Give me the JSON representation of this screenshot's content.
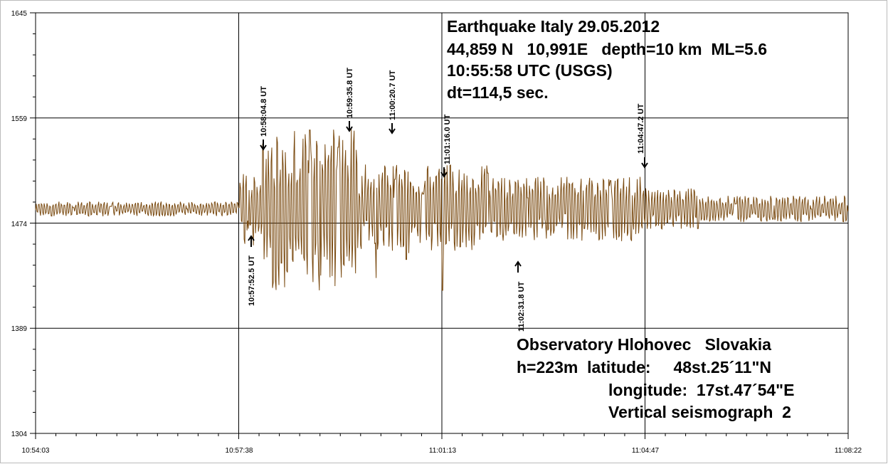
{
  "chart_data": {
    "type": "line",
    "y_ticks": [
      "1645",
      "1559",
      "1474",
      "1389",
      "1304"
    ],
    "x_ticks": [
      "10:54:03",
      "10:57:38",
      "11:01:13",
      "11:04:47",
      "11:08:22"
    ],
    "ylim": [
      1304,
      1645
    ],
    "xlim_seconds": [
      0,
      859
    ],
    "baseline": 1474,
    "grid": true,
    "series": [
      {
        "color": "#7a4a10",
        "x": [
          0,
          40,
          80,
          120,
          160,
          215,
          225,
          240,
          260,
          290,
          300,
          320,
          336,
          360,
          380,
          392,
          410,
          430,
          450,
          478,
          495,
          520,
          540,
          560,
          580,
          608,
          630,
          660,
          700,
          740,
          780,
          820,
          859
        ],
        "y": [
          1485,
          1487,
          1488,
          1487,
          1486,
          1487,
          1470,
          1539,
          1442,
          1550,
          1420,
          1536,
          1539,
          1430,
          1510,
          1445,
          1498,
          1420,
          1500,
          1515,
          1470,
          1495,
          1462,
          1482,
          1470,
          1509,
          1460,
          1495,
          1470,
          1490,
          1478,
          1486,
          1484
        ]
      }
    ],
    "annotations": [
      {
        "label": "10:57:52.5 UT",
        "direction": "up"
      },
      {
        "label": "10:58:04.8 UT",
        "direction": "down"
      },
      {
        "label": "10:59:35.8 UT",
        "direction": "down"
      },
      {
        "label": "11:00:20.7 UT",
        "direction": "down"
      },
      {
        "label": "11:01:16.0 UT",
        "direction": "down"
      },
      {
        "label": "11:02:31.8 UT",
        "direction": "up"
      },
      {
        "label": "11:04:47.2 UT",
        "direction": "down"
      }
    ]
  },
  "info_top": {
    "line1": "Earthquake Italy 29.05.2012",
    "line2": "44,859 N   10,991E   depth=10 km  ML=5.6",
    "line3": "10:55:58 UTC (USGS)",
    "line4": "dt=114,5 sec."
  },
  "info_bottom": {
    "line1": "Observatory Hlohovec   Slovakia",
    "line2": "h=223m  latitude:     48st.25´11\"N",
    "line3": "longitude:  17st.47´54\"E",
    "line4": "Vertical seismograph  2"
  }
}
